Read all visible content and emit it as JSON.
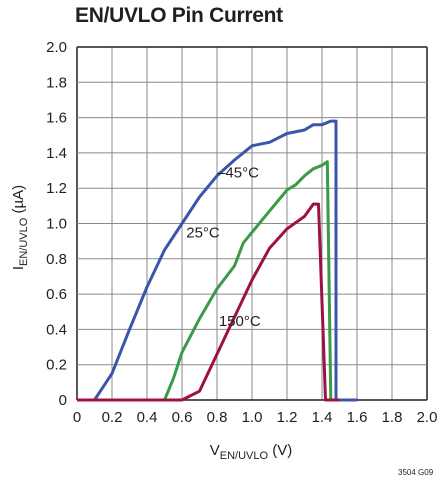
{
  "chart_data": {
    "type": "line",
    "title": "EN/UVLO Pin Current",
    "xlabel": {
      "main": "V",
      "sub": "EN/UVLO",
      "unit": " (V)"
    },
    "ylabel": {
      "main": "I",
      "sub": "EN/UVLO",
      "unit": " (µA)"
    },
    "xlim": [
      0,
      2.0
    ],
    "ylim": [
      0,
      2.0
    ],
    "x_ticks": [
      "0",
      "0.2",
      "0.4",
      "0.6",
      "0.8",
      "1.0",
      "1.2",
      "1.4",
      "1.6",
      "1.8",
      "2.0"
    ],
    "y_ticks": [
      "0",
      "0.2",
      "0.4",
      "0.6",
      "0.8",
      "1.0",
      "1.2",
      "1.4",
      "1.6",
      "1.8",
      "2.0"
    ],
    "grid": true,
    "series": [
      {
        "name": "–45°C",
        "color": "#3b55a8",
        "points": [
          [
            0,
            0
          ],
          [
            0.1,
            0
          ],
          [
            0.2,
            0.15
          ],
          [
            0.3,
            0.4
          ],
          [
            0.4,
            0.64
          ],
          [
            0.5,
            0.85
          ],
          [
            0.6,
            1.0
          ],
          [
            0.7,
            1.15
          ],
          [
            0.8,
            1.27
          ],
          [
            0.9,
            1.36
          ],
          [
            1.0,
            1.44
          ],
          [
            1.1,
            1.46
          ],
          [
            1.2,
            1.51
          ],
          [
            1.3,
            1.53
          ],
          [
            1.35,
            1.56
          ],
          [
            1.4,
            1.56
          ],
          [
            1.45,
            1.58
          ],
          [
            1.48,
            1.58
          ],
          [
            1.48,
            0
          ],
          [
            1.6,
            0
          ]
        ]
      },
      {
        "name": "25°C",
        "color": "#3a9a48",
        "points": [
          [
            0,
            0
          ],
          [
            0.5,
            0
          ],
          [
            0.55,
            0.12
          ],
          [
            0.6,
            0.27
          ],
          [
            0.7,
            0.46
          ],
          [
            0.8,
            0.63
          ],
          [
            0.9,
            0.76
          ],
          [
            0.95,
            0.89
          ],
          [
            1.0,
            0.95
          ],
          [
            1.1,
            1.07
          ],
          [
            1.2,
            1.19
          ],
          [
            1.25,
            1.22
          ],
          [
            1.3,
            1.27
          ],
          [
            1.35,
            1.31
          ],
          [
            1.4,
            1.33
          ],
          [
            1.43,
            1.35
          ],
          [
            1.45,
            0
          ],
          [
            1.5,
            0
          ]
        ]
      },
      {
        "name": "150°C",
        "color": "#9d1245",
        "points": [
          [
            0,
            0
          ],
          [
            0.6,
            0
          ],
          [
            0.7,
            0.05
          ],
          [
            0.8,
            0.26
          ],
          [
            0.9,
            0.47
          ],
          [
            1.0,
            0.68
          ],
          [
            1.1,
            0.86
          ],
          [
            1.2,
            0.97
          ],
          [
            1.3,
            1.04
          ],
          [
            1.35,
            1.11
          ],
          [
            1.38,
            1.11
          ],
          [
            1.42,
            0
          ],
          [
            1.5,
            0
          ]
        ]
      }
    ],
    "annotations": [
      "–45°C",
      "25°C",
      "150°C"
    ],
    "figure_code": "3504 G09"
  }
}
